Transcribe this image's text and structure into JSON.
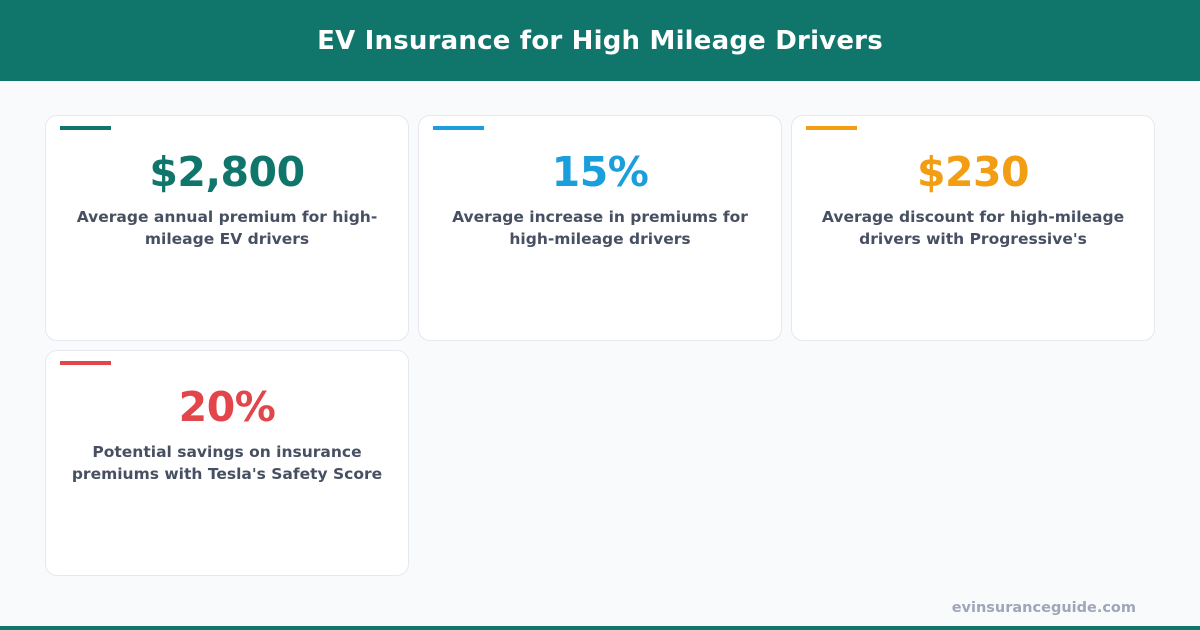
{
  "header": {
    "title": "EV Insurance for High Mileage Drivers"
  },
  "colors": {
    "brand": "#10766c",
    "teal": "#10766c",
    "blue": "#1a9fdc",
    "orange": "#f29d12",
    "red": "#e2454a",
    "text": "#475063",
    "footer_text": "#9ea6b8"
  },
  "stats": [
    {
      "value": "$2,800",
      "description": "Average annual premium for high-mileage EV drivers",
      "color": "#10766c"
    },
    {
      "value": "15%",
      "description": "Average increase in premiums for high-mileage drivers",
      "color": "#1a9fdc"
    },
    {
      "value": "$230",
      "description": "Average discount for high-mileage drivers with Progressive's",
      "color": "#f29d12"
    },
    {
      "value": "20%",
      "description": "Potential savings on insurance premiums with Tesla's Safety Score",
      "color": "#e2454a"
    }
  ],
  "footer": {
    "site": "evinsuranceguide.com"
  }
}
